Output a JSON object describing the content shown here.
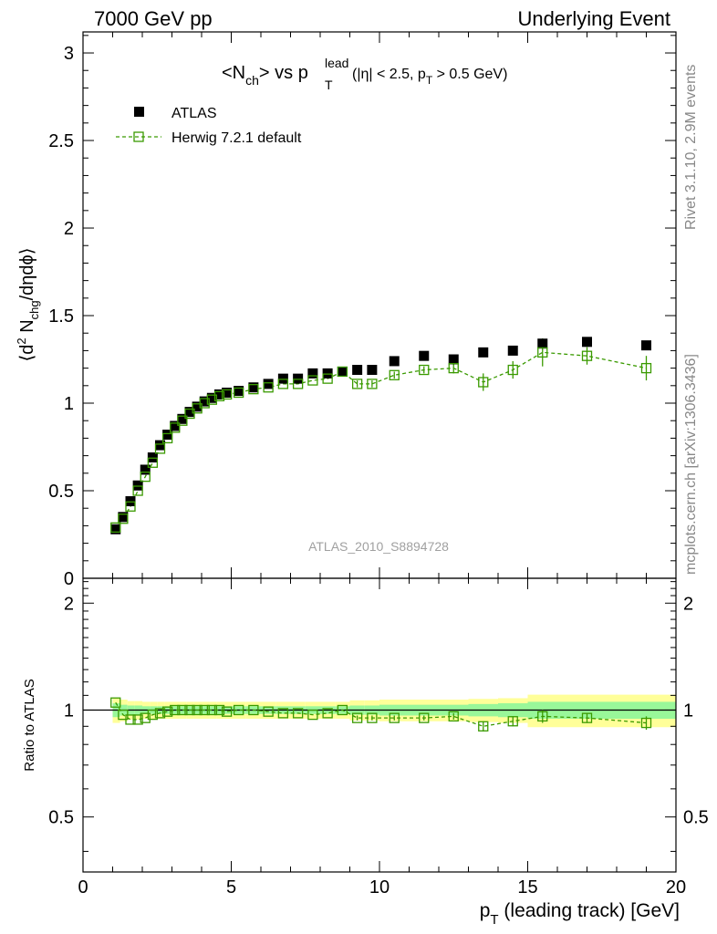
{
  "header": {
    "left": "7000 GeV pp",
    "right": "Underlying Event"
  },
  "side_text": {
    "rivet": "Rivet 3.1.10,  2.9M events",
    "mcplots": "mcplots.cern.ch [arXiv:1306.3436]"
  },
  "main_plot": {
    "title_main": "<N",
    "title_sub_ch": "ch",
    "title_mid": "> vs p",
    "title_sub_T": "T",
    "title_sup_lead": "lead",
    "title_cut_a": "(|η| < 2.5, p",
    "title_cut_sub": "T",
    "title_cut_b": " > 0.5 GeV)",
    "ylabel_a": "⟨d",
    "ylabel_sup": "2",
    "ylabel_b": " N",
    "ylabel_sub": "chg",
    "ylabel_c": "/dηdϕ⟩",
    "watermark": "ATLAS_2010_S8894728",
    "yticks": [
      "0",
      "0.5",
      "1",
      "1.5",
      "2",
      "2.5",
      "3"
    ]
  },
  "legend": {
    "atlas": "ATLAS",
    "herwig": "Herwig 7.2.1 default"
  },
  "ratio_plot": {
    "ylabel": "Ratio to ATLAS",
    "yticks": [
      "0.5",
      "1",
      "2"
    ]
  },
  "x_axis": {
    "label_a": "p",
    "label_sub": "T",
    "label_b": " (leading track) [GeV]",
    "ticks": [
      "0",
      "5",
      "10",
      "15",
      "20"
    ]
  },
  "colors": {
    "atlas": "#000000",
    "herwig": "#3a9a00",
    "band_inner": "#99f799",
    "band_outer": "#ffff99"
  },
  "chart_data": [
    {
      "type": "scatter",
      "xlim": [
        0,
        20
      ],
      "ylim": [
        0,
        3.12
      ],
      "xlabel": "p_T (leading track) [GeV]",
      "ylabel": "⟨d² N_chg/dηdϕ⟩",
      "series": [
        {
          "name": "ATLAS",
          "x": [
            1.1,
            1.35,
            1.6,
            1.85,
            2.1,
            2.35,
            2.6,
            2.85,
            3.1,
            3.35,
            3.6,
            3.85,
            4.1,
            4.35,
            4.6,
            4.85,
            5.25,
            5.75,
            6.25,
            6.75,
            7.25,
            7.75,
            8.25,
            8.75,
            9.25,
            9.75,
            10.5,
            11.5,
            12.5,
            13.5,
            14.5,
            15.5,
            17.0,
            19.0
          ],
          "y": [
            0.28,
            0.35,
            0.44,
            0.53,
            0.62,
            0.69,
            0.76,
            0.82,
            0.87,
            0.91,
            0.95,
            0.98,
            1.01,
            1.03,
            1.05,
            1.06,
            1.07,
            1.09,
            1.11,
            1.14,
            1.14,
            1.17,
            1.17,
            1.18,
            1.19,
            1.19,
            1.24,
            1.27,
            1.25,
            1.29,
            1.3,
            1.34,
            1.35,
            1.33
          ]
        },
        {
          "name": "Herwig 7.2.1 default",
          "x": [
            1.1,
            1.35,
            1.6,
            1.85,
            2.1,
            2.35,
            2.6,
            2.85,
            3.1,
            3.35,
            3.6,
            3.85,
            4.1,
            4.35,
            4.6,
            4.85,
            5.25,
            5.75,
            6.25,
            6.75,
            7.25,
            7.75,
            8.25,
            8.75,
            9.25,
            9.75,
            10.5,
            11.5,
            12.5,
            13.5,
            14.5,
            15.5,
            17.0,
            19.0
          ],
          "y": [
            0.29,
            0.34,
            0.41,
            0.5,
            0.58,
            0.66,
            0.74,
            0.8,
            0.86,
            0.9,
            0.94,
            0.97,
            1.0,
            1.02,
            1.04,
            1.05,
            1.06,
            1.08,
            1.09,
            1.11,
            1.11,
            1.13,
            1.14,
            1.18,
            1.11,
            1.11,
            1.16,
            1.19,
            1.2,
            1.12,
            1.19,
            1.29,
            1.27,
            1.2
          ],
          "yerr": [
            0.01,
            0.01,
            0.01,
            0.01,
            0.01,
            0.01,
            0.01,
            0.01,
            0.01,
            0.01,
            0.01,
            0.01,
            0.01,
            0.01,
            0.01,
            0.01,
            0.01,
            0.01,
            0.01,
            0.01,
            0.01,
            0.01,
            0.01,
            0.015,
            0.02,
            0.02,
            0.02,
            0.02,
            0.03,
            0.05,
            0.05,
            0.08,
            0.05,
            0.07
          ]
        }
      ]
    },
    {
      "type": "scatter",
      "xlim": [
        0,
        20
      ],
      "ylim": [
        0.35,
        2.35
      ],
      "yscale": "log",
      "xlabel": "p_T (leading track) [GeV]",
      "ylabel": "Ratio to ATLAS",
      "series": [
        {
          "name": "Herwig 7.2.1 default",
          "x": [
            1.1,
            1.35,
            1.6,
            1.85,
            2.1,
            2.35,
            2.6,
            2.85,
            3.1,
            3.35,
            3.6,
            3.85,
            4.1,
            4.35,
            4.6,
            4.85,
            5.25,
            5.75,
            6.25,
            6.75,
            7.25,
            7.75,
            8.25,
            8.75,
            9.25,
            9.75,
            10.5,
            11.5,
            12.5,
            13.5,
            14.5,
            15.5,
            17.0,
            19.0
          ],
          "y": [
            1.05,
            0.97,
            0.94,
            0.94,
            0.95,
            0.97,
            0.98,
            0.99,
            1.0,
            1.0,
            1.0,
            1.0,
            1.0,
            1.0,
            1.0,
            0.99,
            1.0,
            1.0,
            0.99,
            0.98,
            0.98,
            0.97,
            0.98,
            1.0,
            0.95,
            0.95,
            0.95,
            0.95,
            0.96,
            0.9,
            0.93,
            0.96,
            0.95,
            0.92
          ],
          "yerr": [
            0.01,
            0.01,
            0.01,
            0.01,
            0.01,
            0.01,
            0.01,
            0.01,
            0.01,
            0.01,
            0.01,
            0.01,
            0.01,
            0.01,
            0.01,
            0.01,
            0.01,
            0.01,
            0.01,
            0.01,
            0.01,
            0.01,
            0.01,
            0.012,
            0.015,
            0.015,
            0.015,
            0.015,
            0.02,
            0.03,
            0.03,
            0.04,
            0.03,
            0.04
          ]
        }
      ],
      "bands": {
        "edges": [
          1.0,
          1.25,
          1.5,
          1.75,
          2.0,
          2.25,
          2.5,
          2.75,
          3.0,
          3.25,
          3.5,
          3.75,
          4.0,
          4.25,
          4.5,
          4.75,
          5.0,
          5.5,
          6.0,
          6.5,
          7.0,
          7.5,
          8.0,
          8.5,
          9.0,
          9.5,
          10.0,
          11.0,
          12.0,
          13.0,
          14.0,
          15.0,
          16.0,
          18.0,
          20.0
        ],
        "inner": [
          0.045,
          0.035,
          0.03,
          0.03,
          0.025,
          0.025,
          0.025,
          0.025,
          0.025,
          0.025,
          0.025,
          0.025,
          0.025,
          0.025,
          0.025,
          0.025,
          0.025,
          0.025,
          0.025,
          0.025,
          0.025,
          0.025,
          0.025,
          0.025,
          0.03,
          0.03,
          0.035,
          0.035,
          0.035,
          0.04,
          0.045,
          0.055,
          0.055,
          0.055
        ],
        "outer": [
          0.08,
          0.07,
          0.06,
          0.06,
          0.055,
          0.055,
          0.055,
          0.055,
          0.055,
          0.055,
          0.055,
          0.055,
          0.055,
          0.055,
          0.055,
          0.055,
          0.055,
          0.055,
          0.055,
          0.055,
          0.055,
          0.055,
          0.055,
          0.055,
          0.065,
          0.065,
          0.07,
          0.07,
          0.07,
          0.075,
          0.08,
          0.105,
          0.105,
          0.105
        ]
      }
    }
  ]
}
